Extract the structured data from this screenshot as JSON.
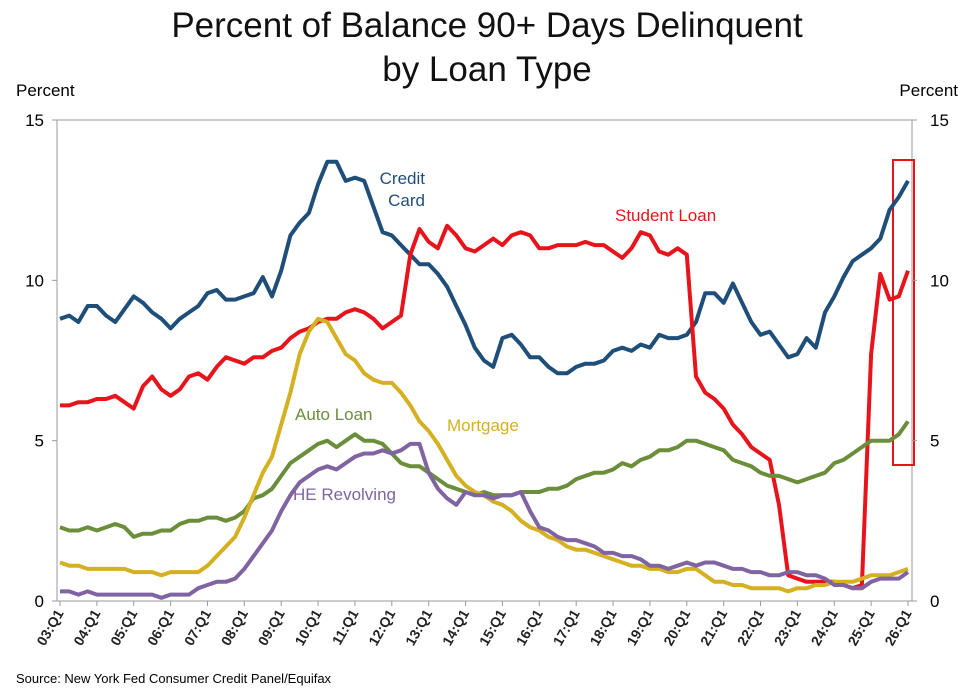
{
  "chart_data": {
    "type": "line",
    "title": [
      "Percent of Balance 90+ Days Delinquent",
      "by Loan Type"
    ],
    "y_label": "Percent",
    "y2_label": "Percent",
    "source": "Source: New York Fed Consumer Credit Panel/Equifax",
    "ylim": [
      0,
      15
    ],
    "yticks": [
      0,
      5,
      10,
      15
    ],
    "y2lim": [
      0,
      15
    ],
    "y2ticks": [
      0,
      5,
      10,
      15
    ],
    "categories": [
      "03:Q1",
      null,
      null,
      null,
      "04:Q1",
      null,
      null,
      null,
      "05:Q1",
      null,
      null,
      null,
      "06:Q1",
      null,
      null,
      null,
      "07:Q1",
      null,
      null,
      null,
      "08:Q1",
      null,
      null,
      null,
      "09:Q1",
      null,
      null,
      null,
      "10:Q1",
      null,
      null,
      null,
      "11:Q1",
      null,
      null,
      null,
      "12:Q1",
      null,
      null,
      null,
      "13:Q1",
      null,
      null,
      null,
      "14:Q1",
      null,
      null,
      null,
      "15:Q1",
      null,
      null,
      null,
      "16:Q1",
      null,
      null,
      null,
      "17:Q1",
      null,
      null,
      null,
      "18:Q1",
      null,
      null,
      null,
      "19:Q1",
      null,
      null,
      null,
      "20:Q1",
      null,
      null,
      null,
      "21:Q1",
      null,
      null,
      null,
      "22:Q1",
      null,
      null,
      null,
      "23:Q1",
      null,
      null,
      null,
      "24:Q1",
      null,
      null,
      null,
      "25:Q1",
      null,
      null,
      null,
      "26:Q1"
    ],
    "series": [
      {
        "name": "Credit Card",
        "color": "#1f4e79",
        "values": [
          8.8,
          8.9,
          8.7,
          9.2,
          9.2,
          8.9,
          8.7,
          9.1,
          9.5,
          9.3,
          9.0,
          8.8,
          8.5,
          8.8,
          9.0,
          9.2,
          9.6,
          9.7,
          9.4,
          9.4,
          9.5,
          9.6,
          10.1,
          9.5,
          10.3,
          11.4,
          11.8,
          12.1,
          13.0,
          13.7,
          13.7,
          13.1,
          13.2,
          13.1,
          12.3,
          11.5,
          11.4,
          11.1,
          10.8,
          10.5,
          10.5,
          10.2,
          9.8,
          9.2,
          8.6,
          7.9,
          7.5,
          7.3,
          8.2,
          8.3,
          8.0,
          7.6,
          7.6,
          7.3,
          7.1,
          7.1,
          7.3,
          7.4,
          7.4,
          7.5,
          7.8,
          7.9,
          7.8,
          8.0,
          7.9,
          8.3,
          8.2,
          8.2,
          8.3,
          8.7,
          9.6,
          9.6,
          9.3,
          9.9,
          9.3,
          8.7,
          8.3,
          8.4,
          8.0,
          7.6,
          7.7,
          8.2,
          7.9,
          9.0,
          9.5,
          10.1,
          10.6,
          10.8,
          11.0,
          11.3,
          12.2,
          12.6,
          13.1
        ]
      },
      {
        "name": "Student Loan",
        "color": "#e8141b",
        "values": [
          6.1,
          6.1,
          6.2,
          6.2,
          6.3,
          6.3,
          6.4,
          6.2,
          6.0,
          6.7,
          7.0,
          6.6,
          6.4,
          6.6,
          7.0,
          7.1,
          6.9,
          7.3,
          7.6,
          7.5,
          7.4,
          7.6,
          7.6,
          7.8,
          7.9,
          8.2,
          8.4,
          8.5,
          8.7,
          8.8,
          8.8,
          9.0,
          9.1,
          9.0,
          8.8,
          8.5,
          8.7,
          8.9,
          10.8,
          11.6,
          11.2,
          11.0,
          11.7,
          11.4,
          11.0,
          10.9,
          11.1,
          11.3,
          11.1,
          11.4,
          11.5,
          11.4,
          11.0,
          11.0,
          11.1,
          11.1,
          11.1,
          11.2,
          11.1,
          11.1,
          10.9,
          10.7,
          11.0,
          11.5,
          11.4,
          10.9,
          10.8,
          11.0,
          10.8,
          7.0,
          6.5,
          6.3,
          6.0,
          5.5,
          5.2,
          4.8,
          4.6,
          4.4,
          3.0,
          0.8,
          0.7,
          0.6,
          0.6,
          0.6,
          0.6,
          0.5,
          0.4,
          0.5,
          7.7,
          10.2,
          9.4,
          9.5,
          10.3
        ]
      },
      {
        "name": "Auto Loan",
        "color": "#6b8e3a",
        "values": [
          2.3,
          2.2,
          2.2,
          2.3,
          2.2,
          2.3,
          2.4,
          2.3,
          2.0,
          2.1,
          2.1,
          2.2,
          2.2,
          2.4,
          2.5,
          2.5,
          2.6,
          2.6,
          2.5,
          2.6,
          2.8,
          3.2,
          3.3,
          3.5,
          3.9,
          4.3,
          4.5,
          4.7,
          4.9,
          5.0,
          4.8,
          5.0,
          5.2,
          5.0,
          5.0,
          4.9,
          4.6,
          4.3,
          4.2,
          4.2,
          4.0,
          3.8,
          3.6,
          3.5,
          3.4,
          3.3,
          3.4,
          3.3,
          3.3,
          3.3,
          3.4,
          3.4,
          3.4,
          3.5,
          3.5,
          3.6,
          3.8,
          3.9,
          4.0,
          4.0,
          4.1,
          4.3,
          4.2,
          4.4,
          4.5,
          4.7,
          4.7,
          4.8,
          5.0,
          5.0,
          4.9,
          4.8,
          4.7,
          4.4,
          4.3,
          4.2,
          4.0,
          3.9,
          3.9,
          3.8,
          3.7,
          3.8,
          3.9,
          4.0,
          4.3,
          4.4,
          4.6,
          4.8,
          5.0,
          5.0,
          5.0,
          5.2,
          5.6
        ]
      },
      {
        "name": "Mortgage",
        "color": "#d4b022",
        "values": [
          1.2,
          1.1,
          1.1,
          1.0,
          1.0,
          1.0,
          1.0,
          1.0,
          0.9,
          0.9,
          0.9,
          0.8,
          0.9,
          0.9,
          0.9,
          0.9,
          1.1,
          1.4,
          1.7,
          2.0,
          2.6,
          3.3,
          4.0,
          4.5,
          5.5,
          6.5,
          7.7,
          8.4,
          8.8,
          8.7,
          8.2,
          7.7,
          7.5,
          7.1,
          6.9,
          6.8,
          6.8,
          6.5,
          6.1,
          5.6,
          5.3,
          4.9,
          4.4,
          3.9,
          3.6,
          3.4,
          3.3,
          3.1,
          3.0,
          2.8,
          2.5,
          2.3,
          2.2,
          2.0,
          1.9,
          1.7,
          1.6,
          1.6,
          1.5,
          1.4,
          1.3,
          1.2,
          1.1,
          1.1,
          1.0,
          1.0,
          0.9,
          0.9,
          1.0,
          1.0,
          0.8,
          0.6,
          0.6,
          0.5,
          0.5,
          0.4,
          0.4,
          0.4,
          0.4,
          0.3,
          0.4,
          0.4,
          0.5,
          0.5,
          0.6,
          0.6,
          0.6,
          0.7,
          0.8,
          0.8,
          0.8,
          0.9,
          1.0
        ]
      },
      {
        "name": "HE Revolving",
        "color": "#8064a2",
        "values": [
          0.3,
          0.3,
          0.2,
          0.3,
          0.2,
          0.2,
          0.2,
          0.2,
          0.2,
          0.2,
          0.2,
          0.1,
          0.2,
          0.2,
          0.2,
          0.4,
          0.5,
          0.6,
          0.6,
          0.7,
          1.0,
          1.4,
          1.8,
          2.2,
          2.8,
          3.3,
          3.7,
          3.9,
          4.1,
          4.2,
          4.1,
          4.3,
          4.5,
          4.6,
          4.6,
          4.7,
          4.6,
          4.7,
          4.9,
          4.9,
          4.0,
          3.5,
          3.2,
          3.0,
          3.4,
          3.3,
          3.3,
          3.2,
          3.3,
          3.3,
          3.4,
          2.8,
          2.3,
          2.2,
          2.0,
          1.9,
          1.9,
          1.8,
          1.7,
          1.5,
          1.5,
          1.4,
          1.4,
          1.3,
          1.1,
          1.1,
          1.0,
          1.1,
          1.2,
          1.1,
          1.2,
          1.2,
          1.1,
          1.0,
          1.0,
          0.9,
          0.9,
          0.8,
          0.8,
          0.9,
          0.9,
          0.8,
          0.8,
          0.7,
          0.5,
          0.5,
          0.4,
          0.4,
          0.6,
          0.7,
          0.7,
          0.7,
          0.9
        ]
      }
    ]
  }
}
